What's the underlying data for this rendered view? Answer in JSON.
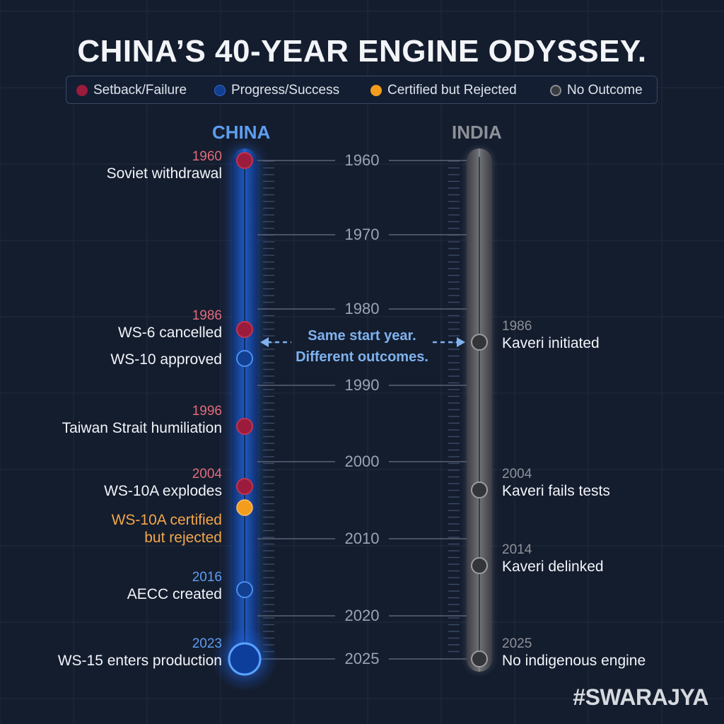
{
  "title": "CHINA’S 40-YEAR ENGINE ODYSSEY.",
  "legend": [
    {
      "label": "Setback/Failure",
      "color": "#9b1b3c"
    },
    {
      "label": "Progress/Success",
      "color": "#123f8f"
    },
    {
      "label": "Certified but Rejected",
      "color": "#f39c1d"
    },
    {
      "label": "No Outcome",
      "color": "#3a3b3e"
    }
  ],
  "columns": {
    "china": "CHINA",
    "india": "INDIA"
  },
  "colors": {
    "china_head": "#5d9ef0",
    "india_head": "#8d9096",
    "china_year": "#e26b7a",
    "blue_year": "#5d9ef0",
    "orange_text": "#f3a64a",
    "india_year": "#8d9096"
  },
  "years": [
    "1960",
    "1970",
    "1980",
    "1990",
    "2000",
    "2010",
    "2020",
    "2025"
  ],
  "china_events": [
    {
      "year": "1960",
      "text": "Soviet withdrawal",
      "status": "setback"
    },
    {
      "year": "1986",
      "text": "WS-6 cancelled",
      "status": "setback"
    },
    {
      "year": "",
      "text": "WS-10 approved",
      "status": "progress"
    },
    {
      "year": "1996",
      "text": "Taiwan Strait humiliation",
      "status": "setback"
    },
    {
      "year": "2004",
      "text": "WS-10A explodes",
      "status": "setback"
    },
    {
      "year": "",
      "text": "WS-10A certified but rejected",
      "line1": "WS-10A certified",
      "line2": "but rejected",
      "status": "rejected"
    },
    {
      "year": "2016",
      "text": "AECC created",
      "status": "progress"
    },
    {
      "year": "2023",
      "text": "WS-15 enters production",
      "status": "progress-major"
    }
  ],
  "india_events": [
    {
      "year": "1986",
      "text": "Kaveri initiated",
      "status": "none"
    },
    {
      "year": "2004",
      "text": "Kaveri fails tests",
      "status": "none"
    },
    {
      "year": "2014",
      "text": "Kaveri delinked",
      "status": "none"
    },
    {
      "year": "2025",
      "text": "No indigenous engine",
      "status": "none"
    }
  ],
  "annotation": {
    "line1": "Same start year.",
    "line2": "Different outcomes."
  },
  "watermark": "#SWARAJYA"
}
